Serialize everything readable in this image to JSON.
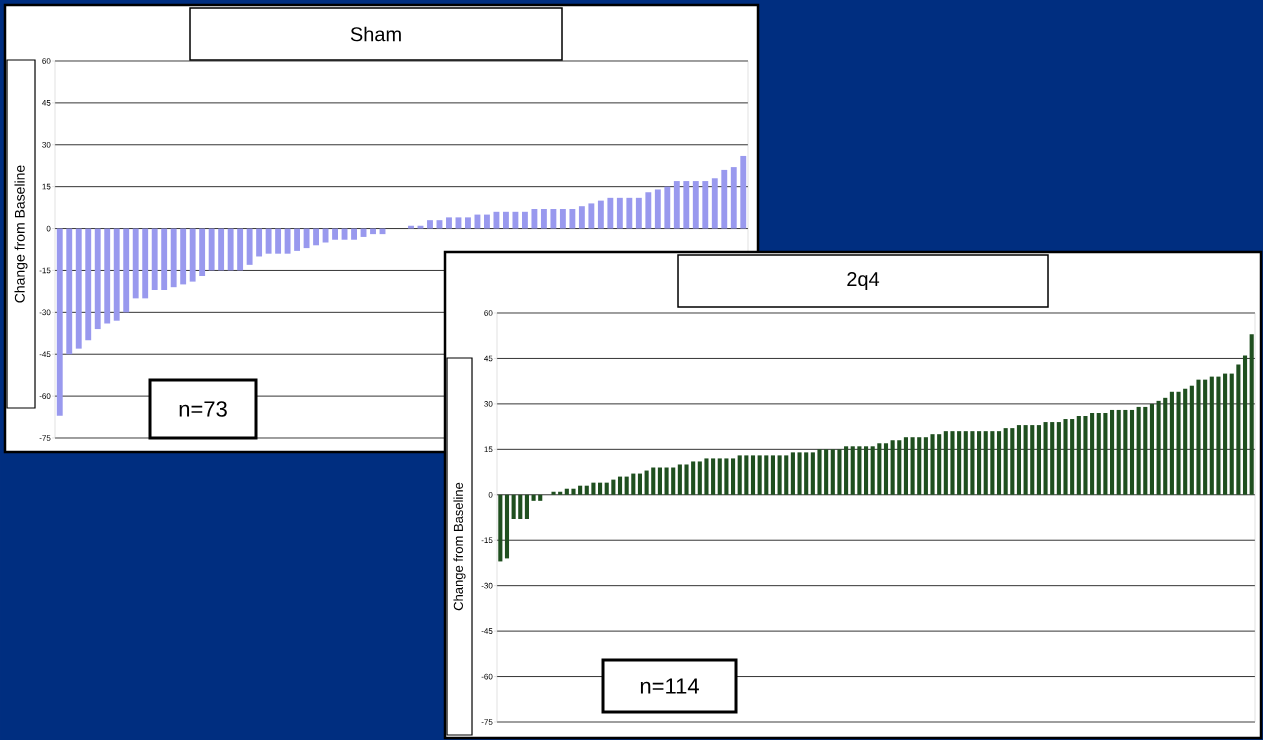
{
  "chart_data": [
    {
      "type": "bar",
      "title": "Sham",
      "ylabel": "Change from Baseline",
      "categories": [
        null,
        null,
        null,
        null,
        null,
        null,
        null,
        null,
        null,
        null,
        null,
        null,
        null,
        null,
        null,
        null,
        null,
        null,
        null,
        null,
        null,
        null,
        null,
        null,
        null,
        null,
        null,
        null,
        null,
        null,
        null,
        null,
        null,
        null,
        null,
        null,
        null,
        null,
        null,
        null,
        null,
        null,
        null,
        null,
        null,
        null,
        null,
        null,
        null,
        null,
        null,
        null,
        null,
        null,
        null,
        null,
        null,
        null,
        null,
        null,
        null,
        null,
        null,
        null,
        null,
        null,
        null,
        null,
        null,
        null,
        null,
        null,
        null
      ],
      "values": [
        -67,
        -45,
        -43,
        -40,
        -36,
        -34,
        -33,
        -30,
        -25,
        -25,
        -22,
        -22,
        -21,
        -20,
        -19,
        -17,
        -15,
        -15,
        -15,
        -15,
        -13,
        -10,
        -9,
        -9,
        -9,
        -8,
        -7,
        -6,
        -5,
        -4,
        -4,
        -4,
        -3,
        -2,
        -2,
        0,
        0,
        1,
        1,
        3,
        3,
        4,
        4,
        4,
        5,
        5,
        6,
        6,
        6,
        6,
        7,
        7,
        7,
        7,
        7,
        8,
        9,
        10,
        11,
        11,
        11,
        11,
        13,
        14,
        15,
        17,
        17,
        17,
        17,
        18,
        21,
        22,
        26
      ],
      "color": "#9999ee",
      "ylim": [
        -75,
        60
      ],
      "yticks": [
        -75,
        -60,
        -45,
        -30,
        -15,
        0,
        15,
        30,
        45,
        60
      ],
      "grid": "y",
      "tick_labels": "y",
      "annotations": [
        "n=73"
      ]
    },
    {
      "type": "bar",
      "title": "2q4",
      "ylabel": "Change from Baseline",
      "categories": [
        null,
        null,
        null,
        null,
        null,
        null,
        null,
        null,
        null,
        null,
        null,
        null,
        null,
        null,
        null,
        null,
        null,
        null,
        null,
        null,
        null,
        null,
        null,
        null,
        null,
        null,
        null,
        null,
        null,
        null,
        null,
        null,
        null,
        null,
        null,
        null,
        null,
        null,
        null,
        null,
        null,
        null,
        null,
        null,
        null,
        null,
        null,
        null,
        null,
        null,
        null,
        null,
        null,
        null,
        null,
        null,
        null,
        null,
        null,
        null,
        null,
        null,
        null,
        null,
        null,
        null,
        null,
        null,
        null,
        null,
        null,
        null,
        null,
        null,
        null,
        null,
        null,
        null,
        null,
        null,
        null,
        null,
        null,
        null,
        null,
        null,
        null,
        null,
        null,
        null,
        null,
        null,
        null,
        null,
        null,
        null,
        null,
        null,
        null,
        null,
        null,
        null,
        null,
        null,
        null,
        null,
        null,
        null,
        null,
        null,
        null,
        null,
        null,
        null
      ],
      "values": [
        -22,
        -21,
        -8,
        -8,
        -8,
        -2,
        -2,
        0,
        1,
        1,
        2,
        2,
        3,
        3,
        4,
        4,
        4,
        5,
        6,
        6,
        7,
        7,
        8,
        9,
        9,
        9,
        9,
        10,
        10,
        11,
        11,
        12,
        12,
        12,
        12,
        12,
        13,
        13,
        13,
        13,
        13,
        13,
        13,
        13,
        14,
        14,
        14,
        14,
        15,
        15,
        15,
        15,
        16,
        16,
        16,
        16,
        16,
        17,
        17,
        18,
        18,
        19,
        19,
        19,
        19,
        20,
        20,
        21,
        21,
        21,
        21,
        21,
        21,
        21,
        21,
        21,
        22,
        22,
        23,
        23,
        23,
        23,
        24,
        24,
        24,
        25,
        25,
        26,
        26,
        27,
        27,
        27,
        28,
        28,
        28,
        28,
        29,
        29,
        30,
        31,
        32,
        34,
        34,
        35,
        36,
        38,
        38,
        39,
        39,
        40,
        40,
        43,
        46,
        53
      ],
      "color": "#1f4f1f",
      "ylim": [
        -75,
        60
      ],
      "yticks": [
        -75,
        -60,
        -45,
        -30,
        -15,
        0,
        15,
        30,
        45,
        60
      ],
      "grid": "y",
      "tick_labels": "y",
      "annotations": [
        "n=114"
      ]
    }
  ]
}
